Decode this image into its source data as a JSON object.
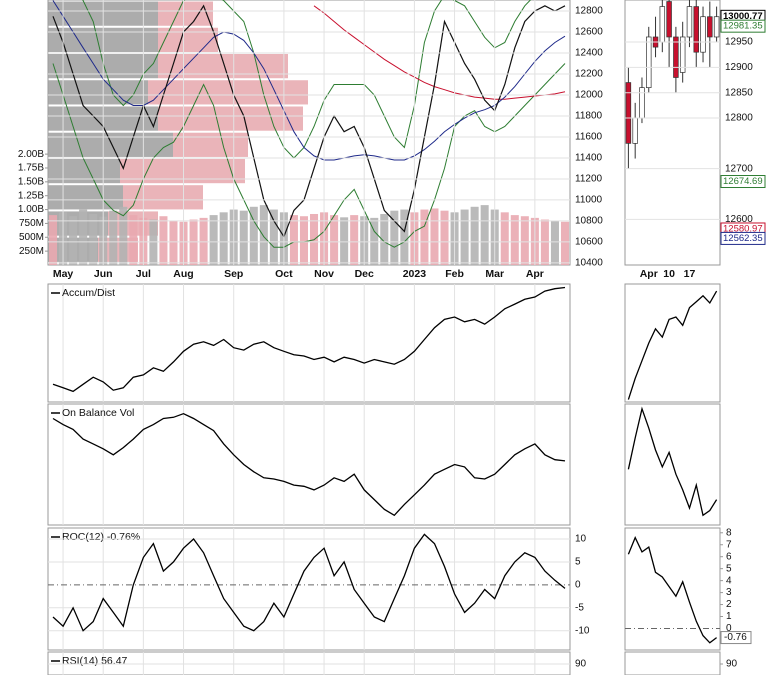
{
  "chart_data": [
    {
      "type": "price",
      "categories": [
        null,
        "May",
        null,
        null,
        null,
        "Jun",
        null,
        null,
        null,
        "Jul",
        null,
        null,
        null,
        "Aug",
        null,
        null,
        null,
        null,
        "Sep",
        null,
        null,
        null,
        null,
        "Oct",
        null,
        null,
        null,
        "Nov",
        null,
        null,
        null,
        "Dec",
        null,
        null,
        null,
        null,
        "2023",
        null,
        null,
        null,
        "Feb",
        null,
        null,
        null,
        "Mar",
        null,
        null,
        null,
        "Apr",
        null,
        null,
        null
      ],
      "ylim": [
        10380,
        12905
      ],
      "yticks": [
        10400,
        10600,
        10800,
        11000,
        11200,
        11400,
        11600,
        11800,
        12000,
        12200,
        12400,
        12600,
        12800
      ],
      "grid": true,
      "series": [
        {
          "color": "#2e7d32",
          "values": [
            13000,
            13000,
            13000,
            12900,
            12700,
            12300,
            12000,
            11900,
            12000,
            12200,
            12300,
            12500,
            12700,
            12900,
            12950,
            12950,
            12950,
            12900,
            12800,
            12700,
            12400,
            12000,
            11700,
            11500,
            11400,
            11500,
            11700,
            11950,
            12100,
            12100,
            12100,
            12100,
            12000,
            11800,
            11600,
            11500,
            11900,
            12500,
            12800,
            12950,
            12900,
            12850,
            12700,
            12550,
            12450,
            12500,
            12700,
            12850,
            12950,
            12950,
            12950,
            12950
          ]
        },
        {
          "color": "#2e7d32",
          "values": [
            12300,
            12000,
            11700,
            11400,
            11200,
            11000,
            10900,
            10850,
            10950,
            11200,
            11400,
            11500,
            11550,
            11700,
            11900,
            12100,
            11900,
            11500,
            11200,
            11000,
            10800,
            10650,
            10550,
            10550,
            10600,
            10600,
            10620,
            10700,
            10850,
            11000,
            11100,
            10900,
            10700,
            10600,
            10550,
            10600,
            10700,
            10750,
            11000,
            11300,
            11700,
            11800,
            11850,
            11700,
            11650,
            11700,
            11800,
            11900,
            12000,
            12100,
            12200,
            12300
          ]
        },
        {
          "color": "#c8102e",
          "values": [
            null,
            null,
            null,
            null,
            null,
            null,
            null,
            null,
            null,
            null,
            null,
            null,
            null,
            null,
            null,
            null,
            null,
            null,
            null,
            null,
            null,
            null,
            null,
            null,
            null,
            null,
            12850,
            12780,
            12700,
            12620,
            12550,
            12480,
            12410,
            12340,
            12280,
            12220,
            12170,
            12120,
            12080,
            12050,
            12020,
            12000,
            11980,
            11970,
            11960,
            11960,
            11970,
            11980,
            11990,
            12000,
            12010,
            12030
          ]
        },
        {
          "color": "#1f2a8a",
          "values": [
            12900,
            12750,
            12600,
            12450,
            12300,
            12150,
            12050,
            11950,
            11900,
            11900,
            11950,
            12050,
            12150,
            12250,
            12350,
            12450,
            12550,
            12600,
            12580,
            12520,
            12400,
            12250,
            12050,
            11850,
            11650,
            11500,
            11420,
            11380,
            11380,
            11400,
            11420,
            11430,
            11420,
            11400,
            11380,
            11380,
            11420,
            11480,
            11560,
            11650,
            11720,
            11780,
            11830,
            11860,
            11900,
            11980,
            12080,
            12200,
            12320,
            12420,
            12500,
            12560
          ]
        },
        {
          "color": "#111111",
          "values": [
            12750,
            12500,
            12200,
            11900,
            11800,
            11700,
            11500,
            11300,
            11600,
            11900,
            11700,
            12000,
            12300,
            12600,
            12700,
            12850,
            12600,
            12300,
            12000,
            11800,
            11400,
            11000,
            10800,
            10650,
            10900,
            11000,
            11300,
            11600,
            11800,
            11650,
            11700,
            11500,
            11200,
            10900,
            10800,
            10700,
            11100,
            11600,
            12100,
            12700,
            12500,
            12300,
            12150,
            11950,
            11850,
            12100,
            12450,
            12700,
            12800,
            12850,
            12800,
            12850
          ]
        }
      ],
      "volume": {
        "ylim": [
          0,
          4780
        ],
        "up_color": "#e9a9b0",
        "down_color": "#b3b3b3",
        "yticks": [
          {
            "value": 250,
            "label": "250M"
          },
          {
            "value": 500,
            "label": "500M"
          },
          {
            "value": 750,
            "label": "750M"
          },
          {
            "value": 1000,
            "label": "1.00B"
          },
          {
            "value": 1250,
            "label": "1.25B"
          },
          {
            "value": 1500,
            "label": "1.50B"
          },
          {
            "value": 1750,
            "label": "1.75B"
          },
          {
            "value": 2000,
            "label": "2.00B"
          }
        ],
        "values": [
          900,
          950,
          880,
          1000,
          920,
          870,
          980,
          1050,
          900,
          850,
          820,
          880,
          800,
          780,
          820,
          850,
          900,
          950,
          1000,
          980,
          1050,
          1080,
          1000,
          950,
          900,
          880,
          920,
          950,
          900,
          860,
          900,
          880,
          850,
          920,
          980,
          1000,
          950,
          1000,
          1020,
          980,
          950,
          1000,
          1050,
          1080,
          1000,
          950,
          900,
          880,
          850,
          820,
          800,
          780
        ]
      },
      "volume_by_price": {
        "xlim": [
          0,
          522
        ],
        "down_color": "#9e9e9e",
        "up_color": "#e6a7ad",
        "bins": [
          10400,
          10650,
          10900,
          11150,
          11400,
          11650,
          11900,
          12150,
          12400,
          12650,
          12900
        ],
        "down": [
          50,
          60,
          75,
          72,
          125,
          110,
          100,
          110,
          110,
          110
        ],
        "up": [
          40,
          50,
          80,
          125,
          75,
          145,
          160,
          130,
          60,
          55
        ]
      }
    },
    {
      "type": "line",
      "title": "Accum/Dist",
      "ylim": [
        0,
        100
      ],
      "color": "#000000",
      "values": [
        15,
        12,
        9,
        15,
        21,
        17,
        10,
        12,
        21,
        23,
        29,
        26,
        34,
        43,
        49,
        51,
        48,
        53,
        46,
        44,
        49,
        51,
        46,
        43,
        40,
        39,
        36,
        38,
        34,
        38,
        36,
        33,
        36,
        34,
        32,
        36,
        43,
        53,
        63,
        70,
        72,
        68,
        70,
        66,
        72,
        79,
        83,
        87,
        89,
        94,
        96,
        97
      ]
    },
    {
      "type": "line",
      "title": "On Balance Vol",
      "ylim": [
        0,
        100
      ],
      "color": "#000000",
      "values": [
        88,
        83,
        79,
        71,
        67,
        63,
        58,
        64,
        71,
        79,
        83,
        88,
        89,
        92,
        88,
        83,
        78,
        67,
        58,
        50,
        44,
        39,
        38,
        36,
        33,
        32,
        29,
        33,
        39,
        36,
        42,
        29,
        21,
        13,
        8,
        17,
        25,
        33,
        42,
        46,
        50,
        48,
        39,
        38,
        42,
        50,
        58,
        63,
        67,
        58,
        54,
        53
      ]
    },
    {
      "type": "line",
      "title": "ROC(12) -0.76%",
      "ylim": [
        -14.2,
        12.4
      ],
      "yticks": [
        -10,
        -5,
        0,
        5,
        10
      ],
      "color": "#000000",
      "values": [
        -7,
        -9,
        -5,
        -10,
        -8,
        -3,
        -6,
        -9,
        0,
        6,
        9,
        3,
        5,
        8,
        10,
        7,
        2,
        -3,
        -6,
        -9,
        -10,
        -8,
        -4,
        -7,
        -2,
        3,
        6,
        8,
        2,
        5,
        -1,
        -4,
        -7,
        -8,
        -3,
        2,
        8,
        11,
        9,
        4,
        -2,
        -6,
        -4,
        -1,
        -3,
        2,
        5,
        7,
        6,
        3,
        1,
        -0.76
      ]
    },
    {
      "type": "line",
      "title": "RSI(14) 56.47",
      "ylim": [
        0,
        100
      ],
      "yticks": [
        90
      ]
    },
    {
      "type": "candlestick",
      "categories": [
        null,
        null,
        null,
        "Apr",
        null,
        null,
        "10",
        null,
        null,
        "17",
        null,
        null,
        null,
        null
      ],
      "ylim": [
        12500,
        13033
      ],
      "yticks": [
        12600,
        12700,
        12800,
        12850,
        12900,
        12950
      ],
      "up_color": "#ffffff",
      "down_color": "#c8102e",
      "open": [
        12870,
        12750,
        12800,
        12860,
        12960,
        12950,
        13030,
        12960,
        12890,
        12960,
        13020,
        12930,
        13000,
        12960
      ],
      "high": [
        12900,
        12830,
        12880,
        12980,
        13000,
        13040,
        13040,
        12980,
        12990,
        13040,
        13040,
        13020,
        13030,
        13020
      ],
      "low": [
        12700,
        12720,
        12790,
        12850,
        12920,
        12930,
        12900,
        12850,
        12870,
        12940,
        12900,
        12910,
        12900,
        12950
      ],
      "close": [
        12750,
        12800,
        12860,
        12960,
        12940,
        13020,
        12960,
        12880,
        12960,
        13020,
        12930,
        13000,
        12960,
        13000
      ],
      "last_values": [
        13000.77,
        12981.35,
        12674.69,
        12580.97,
        12562.35
      ],
      "last_value_colors": [
        "#000000",
        "#2e7d32",
        "#2e7d32",
        "#c8102e",
        "#1f2a8a"
      ]
    },
    {
      "type": "line",
      "ylim": [
        0,
        100
      ],
      "color": "#000000",
      "values": [
        2,
        20,
        35,
        50,
        62,
        55,
        70,
        72,
        65,
        80,
        85,
        90,
        84,
        94
      ]
    },
    {
      "type": "line",
      "ylim": [
        0,
        100
      ],
      "color": "#000000",
      "values": [
        46,
        72,
        96,
        80,
        62,
        48,
        60,
        42,
        29,
        14,
        33,
        8,
        12,
        21
      ]
    },
    {
      "type": "line",
      "ylim": [
        -1.8,
        8.4
      ],
      "yticks": [
        0,
        1,
        2,
        3,
        4,
        5,
        6,
        7,
        8
      ],
      "color": "#000000",
      "values": [
        6.2,
        7.6,
        6.4,
        6.8,
        4.7,
        4.3,
        3.5,
        2.7,
        3.9,
        2.2,
        0.6,
        -0.6,
        -1.2,
        -0.76
      ]
    },
    {
      "type": "line",
      "ylim": [
        0,
        100
      ],
      "yticks": [
        90
      ]
    }
  ]
}
